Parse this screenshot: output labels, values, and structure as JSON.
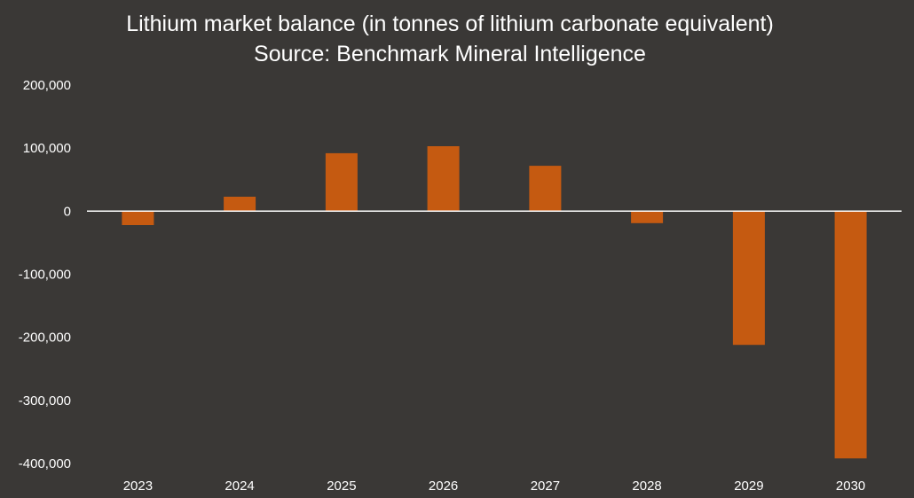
{
  "chart_data": {
    "type": "bar",
    "title": "Lithium market balance (in tonnes of lithium carbonate equivalent)",
    "subtitle": "Source: Benchmark Mineral Intelligence",
    "xlabel": "",
    "ylabel": "",
    "categories": [
      "2023",
      "2024",
      "2025",
      "2026",
      "2027",
      "2028",
      "2029",
      "2030"
    ],
    "values": [
      -22000,
      23000,
      92000,
      103000,
      72000,
      -19000,
      -212000,
      -392000
    ],
    "ylim": [
      -400000,
      200000
    ],
    "yticks": [
      200000,
      100000,
      0,
      -100000,
      -200000,
      -300000,
      -400000
    ],
    "ytick_labels": [
      "200,000",
      "100,000",
      "0",
      "-100,000",
      "-200,000",
      "-300,000",
      "-400,000"
    ],
    "grid": false,
    "legend": "none",
    "colors": {
      "background": "#3a3836",
      "bar": "#c55a11",
      "text": "#ffffff",
      "zero_line": "#ffffff"
    }
  }
}
